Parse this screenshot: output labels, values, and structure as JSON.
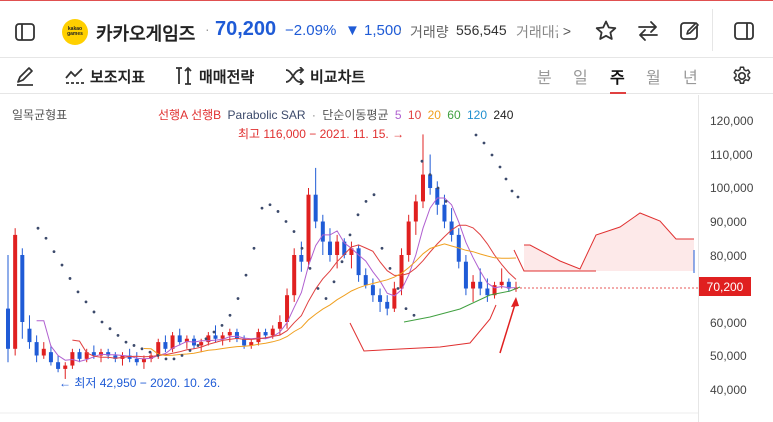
{
  "header": {
    "logo_text_1": "kakao",
    "logo_text_2": "games",
    "stock_name": "카카오게임즈",
    "sep": "·",
    "price": "70,200",
    "change_pct": "−2.09%",
    "change_abs": "▼ 1,500",
    "sep2": "·",
    "volume_label": "거래량",
    "volume_value": "556,545",
    "amount_label": "거래대금",
    "more": ">"
  },
  "toolbar": {
    "aux_indicator": "보조지표",
    "trade_strategy": "매매전략",
    "compare_chart": "비교차트",
    "periods": [
      "분",
      "일",
      "주",
      "월",
      "년"
    ],
    "active_period": "주"
  },
  "chart_labels": {
    "ichimoku": "일목균형표",
    "legend_spanA": "선행A",
    "legend_spanB": "선행B",
    "legend_sar": "Parabolic SAR",
    "legend_dot": "·",
    "legend_ma": "단순이동평균",
    "ma5": "5",
    "ma10": "10",
    "ma20": "20",
    "ma60": "60",
    "ma120": "120",
    "ma240": "240",
    "high_note": "최고 116,000 − 2021. 11. 15. →",
    "low_note": "← 최저 42,950 − 2020. 10. 26.",
    "current_price_tag": "70,200"
  },
  "colors": {
    "up": "#e02020",
    "down": "#1f5bd6",
    "spanA": "#e03030",
    "spanB": "#e03030",
    "sar": "#3c4a6b",
    "ma5": "#b060d0",
    "ma10": "#e04040",
    "ma20": "#f0a020",
    "ma60": "#40a040",
    "ma120": "#2090d0",
    "ma240": "#222222"
  },
  "chart_data": {
    "type": "candlestick",
    "y_ticks": [
      "120,000",
      "110,000",
      "100,000",
      "90,000",
      "80,000",
      "70,000",
      "60,000",
      "50,000",
      "40,000"
    ],
    "ylim": [
      37000,
      123000
    ],
    "current_price": 70200,
    "high": {
      "value": 116000,
      "date": "2021. 11. 15."
    },
    "low": {
      "value": 42950,
      "date": "2020. 10. 26."
    },
    "candles": [
      [
        64000,
        80000,
        48000,
        52000
      ],
      [
        52000,
        88000,
        50000,
        86000
      ],
      [
        80000,
        82000,
        55000,
        60000
      ],
      [
        58000,
        62000,
        52000,
        54000
      ],
      [
        54000,
        56000,
        48000,
        50000
      ],
      [
        50000,
        54000,
        49000,
        52000
      ],
      [
        51000,
        53000,
        47000,
        48000
      ],
      [
        48000,
        50000,
        45000,
        46000
      ],
      [
        46000,
        48000,
        43000,
        47000
      ],
      [
        47000,
        52000,
        46000,
        51000
      ],
      [
        51000,
        52000,
        48000,
        49000
      ],
      [
        49000,
        52000,
        48000,
        51000
      ],
      [
        51000,
        53000,
        49000,
        50000
      ],
      [
        50000,
        52000,
        48000,
        51000
      ],
      [
        51000,
        52000,
        49000,
        50000
      ],
      [
        50000,
        51000,
        48000,
        49000
      ],
      [
        49000,
        51000,
        47000,
        50000
      ],
      [
        50000,
        52000,
        48000,
        49000
      ],
      [
        49000,
        51000,
        47000,
        48000
      ],
      [
        48000,
        50000,
        46000,
        49000
      ],
      [
        49000,
        51000,
        48000,
        50000
      ],
      [
        50000,
        55000,
        49000,
        54000
      ],
      [
        54000,
        56000,
        51000,
        52000
      ],
      [
        52000,
        57000,
        51000,
        56000
      ],
      [
        56000,
        58000,
        53000,
        54000
      ],
      [
        54000,
        56000,
        52000,
        55000
      ],
      [
        55000,
        56000,
        52000,
        53000
      ],
      [
        53000,
        55000,
        51000,
        54000
      ],
      [
        54000,
        57000,
        53000,
        56000
      ],
      [
        56000,
        59000,
        54000,
        55000
      ],
      [
        55000,
        57000,
        53000,
        56000
      ],
      [
        56000,
        58000,
        54000,
        57000
      ],
      [
        57000,
        58000,
        54000,
        55000
      ],
      [
        55000,
        56000,
        52000,
        53000
      ],
      [
        53000,
        55000,
        52000,
        54000
      ],
      [
        54000,
        58000,
        53000,
        57000
      ],
      [
        57000,
        58000,
        55000,
        56000
      ],
      [
        56000,
        59000,
        55000,
        58000
      ],
      [
        58000,
        62000,
        56000,
        60000
      ],
      [
        60000,
        70000,
        58000,
        68000
      ],
      [
        68000,
        82000,
        66000,
        80000
      ],
      [
        80000,
        84000,
        75000,
        78000
      ],
      [
        78000,
        100000,
        76000,
        98000
      ],
      [
        98000,
        106000,
        88000,
        90000
      ],
      [
        90000,
        92000,
        80000,
        84000
      ],
      [
        84000,
        88000,
        78000,
        80000
      ],
      [
        80000,
        86000,
        76000,
        84000
      ],
      [
        84000,
        85000,
        79000,
        80000
      ],
      [
        80000,
        84000,
        76000,
        82000
      ],
      [
        82000,
        83000,
        72000,
        74000
      ],
      [
        74000,
        76000,
        70000,
        71000
      ],
      [
        71000,
        73000,
        66000,
        68000
      ],
      [
        68000,
        70000,
        63000,
        66000
      ],
      [
        66000,
        68000,
        62000,
        64000
      ],
      [
        64000,
        72000,
        63000,
        70000
      ],
      [
        70000,
        82000,
        68000,
        80000
      ],
      [
        80000,
        92000,
        78000,
        90000
      ],
      [
        90000,
        98000,
        86000,
        96000
      ],
      [
        96000,
        116000,
        94000,
        104000
      ],
      [
        104000,
        110000,
        98000,
        100000
      ],
      [
        100000,
        102000,
        92000,
        95000
      ],
      [
        95000,
        98000,
        88000,
        90000
      ],
      [
        90000,
        94000,
        84000,
        86000
      ],
      [
        86000,
        88000,
        76000,
        78000
      ],
      [
        78000,
        80000,
        68000,
        70000
      ],
      [
        70000,
        74000,
        66000,
        72000
      ],
      [
        72000,
        76000,
        68000,
        70000
      ],
      [
        70000,
        73000,
        66000,
        68000
      ],
      [
        68000,
        72000,
        67000,
        71000
      ],
      [
        71000,
        76000,
        70000,
        72000
      ],
      [
        72000,
        73000,
        69000,
        70000
      ],
      [
        70000,
        72000,
        69000,
        70200
      ]
    ],
    "sar": [
      [
        9,
        88000
      ],
      [
        12,
        85000
      ],
      [
        15,
        81000
      ],
      [
        18,
        77000
      ],
      [
        21,
        73000
      ],
      [
        24,
        69000
      ],
      [
        27,
        66000
      ],
      [
        30,
        63000
      ],
      [
        33,
        60000
      ],
      [
        36,
        58000
      ],
      [
        40,
        56000
      ],
      [
        44,
        54000
      ],
      [
        48,
        53000
      ],
      [
        52,
        52000
      ],
      [
        56,
        51000
      ],
      [
        60,
        50000
      ],
      [
        64,
        49000
      ],
      [
        68,
        49000
      ],
      [
        72,
        50000
      ],
      [
        76,
        51500
      ],
      [
        80,
        53000
      ],
      [
        84,
        55000
      ],
      [
        88,
        57000
      ],
      [
        92,
        59000
      ],
      [
        96,
        62000
      ],
      [
        100,
        67000
      ],
      [
        104,
        74000
      ],
      [
        108,
        82000
      ],
      [
        112,
        94000
      ],
      [
        116,
        95000
      ],
      [
        120,
        93000
      ],
      [
        124,
        90000
      ],
      [
        128,
        87000
      ],
      [
        132,
        82000
      ],
      [
        136,
        76000
      ],
      [
        140,
        70000
      ],
      [
        144,
        67000
      ],
      [
        148,
        72000
      ],
      [
        152,
        78000
      ],
      [
        156,
        86000
      ],
      [
        160,
        92000
      ],
      [
        164,
        96000
      ],
      [
        168,
        98000
      ],
      [
        172,
        82000
      ],
      [
        176,
        76000
      ],
      [
        180,
        70000
      ],
      [
        184,
        64000
      ],
      [
        188,
        62000
      ],
      [
        192,
        108000
      ],
      [
        196,
        104000
      ],
      [
        200,
        100000
      ],
      [
        204,
        96000
      ]
    ],
    "span_area": [
      [
        0,
        78000
      ],
      [
        10,
        78000
      ],
      [
        20,
        77500
      ],
      [
        30,
        77000
      ],
      [
        40,
        77000
      ],
      [
        50,
        76500
      ],
      [
        60,
        76000
      ],
      [
        70,
        76000
      ],
      [
        80,
        76500
      ],
      [
        90,
        77000
      ],
      [
        100,
        78000
      ],
      [
        110,
        79000
      ]
    ]
  }
}
